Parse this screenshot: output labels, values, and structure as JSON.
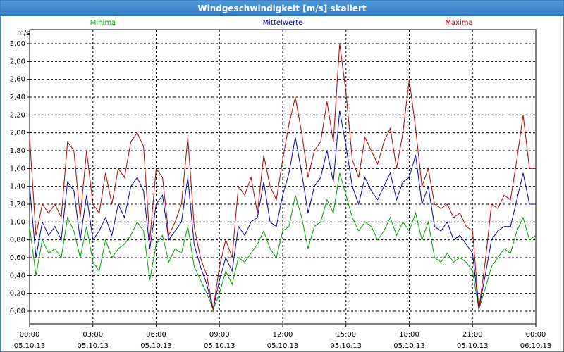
{
  "window": {
    "title": "Windgeschwindigkeit [m/s] skaliert"
  },
  "chart_data": {
    "type": "line",
    "title": "Windgeschwindigkeit [m/s] skaliert",
    "ylabel": "m/s",
    "ylim": [
      0,
      3.0
    ],
    "yticks": [
      "0,00",
      "0,20",
      "0,40",
      "0,60",
      "0,80",
      "1,00",
      "1,20",
      "1,40",
      "1,60",
      "1,80",
      "2,00",
      "2,20",
      "2,40",
      "2,60",
      "2,80",
      "3,00"
    ],
    "xticks": [
      {
        "time": "00:00",
        "date": "05.10.13"
      },
      {
        "time": "03:00",
        "date": "05.10.13"
      },
      {
        "time": "06:00",
        "date": "05.10.13"
      },
      {
        "time": "09:00",
        "date": "05.10.13"
      },
      {
        "time": "12:00",
        "date": "05.10.13"
      },
      {
        "time": "15:00",
        "date": "05.10.13"
      },
      {
        "time": "18:00",
        "date": "05.10.13"
      },
      {
        "time": "21:00",
        "date": "05.10.13"
      },
      {
        "time": "00:00",
        "date": "06.10.13"
      }
    ],
    "xrange_hours": [
      0,
      24
    ],
    "grid": true,
    "legend_position": "top",
    "series": [
      {
        "name": "Minima",
        "color": "#00a000",
        "x": [
          0,
          0.3,
          0.6,
          0.9,
          1.2,
          1.5,
          1.8,
          2.1,
          2.4,
          2.7,
          3.0,
          3.3,
          3.6,
          3.9,
          4.2,
          4.5,
          4.8,
          5.1,
          5.4,
          5.7,
          6.0,
          6.3,
          6.6,
          6.9,
          7.2,
          7.5,
          7.8,
          8.1,
          8.4,
          8.7,
          9.0,
          9.3,
          9.6,
          9.9,
          10.2,
          10.5,
          10.8,
          11.1,
          11.4,
          11.7,
          12.0,
          12.3,
          12.6,
          12.9,
          13.2,
          13.5,
          13.8,
          14.1,
          14.4,
          14.7,
          15.0,
          15.3,
          15.6,
          15.9,
          16.2,
          16.5,
          16.8,
          17.1,
          17.4,
          17.7,
          18.0,
          18.3,
          18.6,
          18.9,
          19.2,
          19.5,
          19.8,
          20.1,
          20.4,
          20.7,
          21.0,
          21.3,
          21.6,
          21.9,
          22.2,
          22.5,
          22.8,
          23.1,
          23.4,
          23.7,
          24.0
        ],
        "values": [
          0.95,
          0.4,
          0.8,
          0.65,
          0.7,
          0.6,
          1.05,
          0.9,
          0.6,
          0.95,
          0.55,
          0.45,
          0.8,
          0.6,
          0.7,
          0.75,
          0.85,
          1.0,
          0.9,
          0.35,
          0.75,
          0.85,
          0.55,
          0.7,
          0.65,
          0.95,
          0.5,
          0.35,
          0.2,
          0.02,
          0.2,
          0.45,
          0.3,
          0.6,
          0.55,
          0.65,
          0.75,
          0.9,
          0.7,
          0.6,
          0.9,
          0.95,
          1.3,
          1.05,
          0.7,
          0.95,
          1.0,
          1.25,
          1.1,
          1.55,
          1.3,
          1.05,
          0.9,
          1.0,
          0.95,
          0.8,
          0.9,
          1.05,
          0.85,
          1.0,
          0.9,
          1.1,
          0.8,
          1.0,
          0.6,
          0.55,
          0.65,
          0.55,
          0.6,
          0.55,
          0.45,
          0.02,
          0.25,
          0.5,
          0.6,
          0.7,
          0.65,
          0.9,
          1.05,
          0.8,
          0.85
        ]
      },
      {
        "name": "Mittelwerte",
        "color": "#0000b0",
        "x": [
          0,
          0.3,
          0.6,
          0.9,
          1.2,
          1.5,
          1.8,
          2.1,
          2.4,
          2.7,
          3.0,
          3.3,
          3.6,
          3.9,
          4.2,
          4.5,
          4.8,
          5.1,
          5.4,
          5.7,
          6.0,
          6.3,
          6.6,
          6.9,
          7.2,
          7.5,
          7.8,
          8.1,
          8.4,
          8.7,
          9.0,
          9.3,
          9.6,
          9.9,
          10.2,
          10.5,
          10.8,
          11.1,
          11.4,
          11.7,
          12.0,
          12.3,
          12.6,
          12.9,
          13.2,
          13.5,
          13.8,
          14.1,
          14.4,
          14.7,
          15.0,
          15.3,
          15.6,
          15.9,
          16.2,
          16.5,
          16.8,
          17.1,
          17.4,
          17.7,
          18.0,
          18.3,
          18.6,
          18.9,
          19.2,
          19.5,
          19.8,
          20.1,
          20.4,
          20.7,
          21.0,
          21.3,
          21.6,
          21.9,
          22.2,
          22.5,
          22.8,
          23.1,
          23.4,
          23.7,
          24.0
        ],
        "values": [
          1.4,
          0.6,
          1.0,
          0.85,
          0.95,
          0.8,
          1.45,
          1.35,
          0.8,
          1.3,
          0.8,
          0.9,
          1.05,
          0.85,
          1.2,
          1.05,
          1.4,
          1.5,
          1.35,
          0.7,
          1.2,
          1.3,
          0.8,
          0.9,
          1.0,
          1.5,
          0.75,
          0.5,
          0.3,
          0.02,
          0.35,
          0.6,
          0.45,
          0.95,
          0.85,
          1.0,
          1.05,
          1.45,
          1.0,
          0.95,
          1.3,
          1.55,
          1.95,
          1.55,
          1.1,
          1.4,
          1.5,
          1.8,
          1.45,
          2.25,
          1.85,
          1.4,
          1.2,
          1.5,
          1.35,
          1.25,
          1.4,
          1.55,
          1.25,
          1.45,
          1.5,
          1.75,
          1.2,
          1.4,
          0.95,
          0.9,
          1.0,
          0.8,
          0.85,
          0.75,
          0.65,
          0.02,
          0.4,
          0.8,
          0.9,
          0.95,
          0.95,
          1.25,
          1.55,
          1.2,
          1.2
        ]
      },
      {
        "name": "Maxima",
        "color": "#b00000",
        "x": [
          0,
          0.3,
          0.6,
          0.9,
          1.2,
          1.5,
          1.8,
          2.1,
          2.4,
          2.7,
          3.0,
          3.3,
          3.6,
          3.9,
          4.2,
          4.5,
          4.8,
          5.1,
          5.4,
          5.7,
          6.0,
          6.3,
          6.6,
          6.9,
          7.2,
          7.5,
          7.8,
          8.1,
          8.4,
          8.7,
          9.0,
          9.3,
          9.6,
          9.9,
          10.2,
          10.5,
          10.8,
          11.1,
          11.4,
          11.7,
          12.0,
          12.3,
          12.6,
          12.9,
          13.2,
          13.5,
          13.8,
          14.1,
          14.4,
          14.7,
          15.0,
          15.3,
          15.6,
          15.9,
          16.2,
          16.5,
          16.8,
          17.1,
          17.4,
          17.7,
          18.0,
          18.3,
          18.6,
          18.9,
          19.2,
          19.5,
          19.8,
          20.1,
          20.4,
          20.7,
          21.0,
          21.3,
          21.6,
          21.9,
          22.2,
          22.5,
          22.8,
          23.1,
          23.4,
          23.7,
          24.0
        ],
        "values": [
          1.95,
          0.85,
          1.2,
          1.1,
          1.2,
          1.05,
          1.9,
          1.8,
          1.05,
          1.8,
          1.2,
          1.1,
          1.55,
          1.2,
          1.6,
          1.5,
          1.9,
          2.0,
          1.85,
          0.8,
          1.6,
          1.5,
          0.85,
          1.0,
          1.2,
          1.95,
          0.95,
          0.6,
          0.4,
          0.02,
          0.5,
          0.8,
          0.6,
          1.4,
          1.3,
          1.5,
          1.1,
          1.75,
          1.4,
          1.25,
          1.7,
          2.1,
          2.4,
          2.0,
          1.5,
          1.8,
          1.9,
          2.35,
          1.9,
          3.0,
          2.45,
          1.7,
          1.5,
          1.95,
          1.8,
          1.65,
          1.9,
          2.05,
          1.6,
          2.0,
          2.6,
          2.05,
          1.4,
          1.6,
          1.2,
          1.15,
          1.2,
          1.05,
          1.1,
          0.95,
          0.9,
          0.02,
          0.55,
          1.2,
          1.15,
          1.3,
          1.25,
          1.7,
          2.2,
          1.6,
          1.6
        ]
      }
    ]
  }
}
